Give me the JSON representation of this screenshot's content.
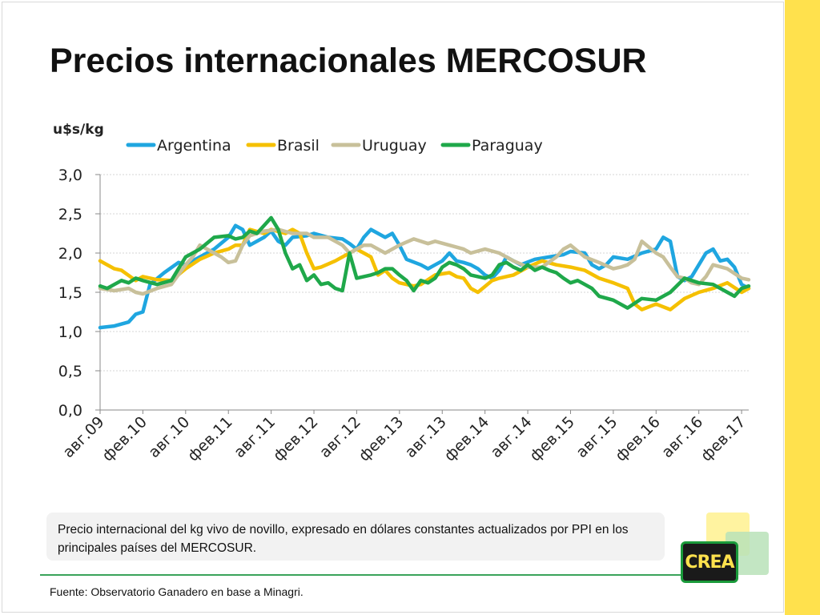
{
  "title": "Precios internacionales MERCOSUR",
  "caption": "Precio internacional del kg vivo de novillo, expresado en dólares constantes actualizados por PPI en los principales países del  MERCOSUR.",
  "source": "Fuente: Observatorio Ganadero en base a Minagri.",
  "logo_text": "CREA",
  "colors": {
    "side_stripe": "#ffe14d",
    "divider": "#3aa35a"
  },
  "chart_data": {
    "type": "line",
    "ylabel": "u$s/kg",
    "ylim": [
      0,
      3
    ],
    "yticks": [
      "0,0",
      "0,5",
      "1,0",
      "1,5",
      "2,0",
      "2,5",
      "3,0"
    ],
    "ytick_values": [
      0,
      0.5,
      1,
      1.5,
      2,
      2.5,
      3
    ],
    "x_labels": [
      "авг.09",
      "фев.10",
      "авг.10",
      "фев.11",
      "авг.11",
      "фев.12",
      "авг.12",
      "фев.13",
      "авг.13",
      "фев.14",
      "авг.14",
      "фев.15",
      "авг.15",
      "фев.16",
      "авг.16",
      "фев.17"
    ],
    "x_range": [
      0,
      91
    ],
    "grid": "horizontal",
    "legend": "top",
    "series": [
      {
        "name": "Argentina",
        "color": "#1fa6e0",
        "values": [
          [
            0,
            1.05
          ],
          [
            2,
            1.07
          ],
          [
            4,
            1.12
          ],
          [
            5,
            1.22
          ],
          [
            6,
            1.25
          ],
          [
            7,
            1.6
          ],
          [
            9,
            1.75
          ],
          [
            11,
            1.88
          ],
          [
            12,
            1.85
          ],
          [
            14,
            1.95
          ],
          [
            16,
            2.05
          ],
          [
            18,
            2.2
          ],
          [
            19,
            2.35
          ],
          [
            20,
            2.3
          ],
          [
            21,
            2.1
          ],
          [
            23,
            2.2
          ],
          [
            24,
            2.28
          ],
          [
            25,
            2.15
          ],
          [
            26,
            2.1
          ],
          [
            27,
            2.2
          ],
          [
            29,
            2.22
          ],
          [
            30,
            2.25
          ],
          [
            32,
            2.2
          ],
          [
            34,
            2.18
          ],
          [
            35,
            2.12
          ],
          [
            36,
            2.05
          ],
          [
            37,
            2.2
          ],
          [
            38,
            2.3
          ],
          [
            39,
            2.25
          ],
          [
            40,
            2.2
          ],
          [
            41,
            2.25
          ],
          [
            42,
            2.1
          ],
          [
            43,
            1.92
          ],
          [
            45,
            1.85
          ],
          [
            46,
            1.8
          ],
          [
            47,
            1.85
          ],
          [
            48,
            1.9
          ],
          [
            49,
            2.0
          ],
          [
            50,
            1.9
          ],
          [
            51,
            1.88
          ],
          [
            52,
            1.85
          ],
          [
            53,
            1.8
          ],
          [
            54,
            1.72
          ],
          [
            55,
            1.68
          ],
          [
            56,
            1.78
          ],
          [
            57,
            1.95
          ],
          [
            59,
            1.85
          ],
          [
            61,
            1.92
          ],
          [
            63,
            1.95
          ],
          [
            65,
            1.98
          ],
          [
            66,
            2.02
          ],
          [
            68,
            2.0
          ],
          [
            69,
            1.85
          ],
          [
            70,
            1.8
          ],
          [
            71,
            1.85
          ],
          [
            72,
            1.95
          ],
          [
            74,
            1.92
          ],
          [
            76,
            2.0
          ],
          [
            78,
            2.05
          ],
          [
            79,
            2.2
          ],
          [
            80,
            2.15
          ],
          [
            81,
            1.7
          ],
          [
            82,
            1.65
          ],
          [
            83,
            1.7
          ],
          [
            84,
            1.85
          ],
          [
            85,
            2.0
          ],
          [
            86,
            2.05
          ],
          [
            87,
            1.9
          ],
          [
            88,
            1.92
          ],
          [
            89,
            1.82
          ],
          [
            90,
            1.6
          ],
          [
            91,
            1.55
          ]
        ]
      },
      {
        "name": "Brasil",
        "color": "#f5c000",
        "values": [
          [
            0,
            1.9
          ],
          [
            2,
            1.8
          ],
          [
            3,
            1.78
          ],
          [
            5,
            1.65
          ],
          [
            6,
            1.7
          ],
          [
            8,
            1.66
          ],
          [
            10,
            1.65
          ],
          [
            12,
            1.8
          ],
          [
            14,
            1.92
          ],
          [
            16,
            2.0
          ],
          [
            18,
            2.05
          ],
          [
            19,
            2.1
          ],
          [
            20,
            2.1
          ],
          [
            21,
            2.3
          ],
          [
            23,
            2.25
          ],
          [
            24,
            2.3
          ],
          [
            26,
            2.25
          ],
          [
            27,
            2.3
          ],
          [
            28,
            2.25
          ],
          [
            29,
            2.0
          ],
          [
            30,
            1.8
          ],
          [
            31,
            1.82
          ],
          [
            33,
            1.9
          ],
          [
            35,
            2.0
          ],
          [
            36,
            2.05
          ],
          [
            37,
            2.0
          ],
          [
            38,
            1.95
          ],
          [
            39,
            1.72
          ],
          [
            40,
            1.78
          ],
          [
            41,
            1.68
          ],
          [
            42,
            1.62
          ],
          [
            44,
            1.58
          ],
          [
            45,
            1.6
          ],
          [
            47,
            1.72
          ],
          [
            49,
            1.75
          ],
          [
            50,
            1.7
          ],
          [
            51,
            1.68
          ],
          [
            52,
            1.55
          ],
          [
            53,
            1.5
          ],
          [
            55,
            1.65
          ],
          [
            56,
            1.68
          ],
          [
            58,
            1.72
          ],
          [
            60,
            1.82
          ],
          [
            62,
            1.9
          ],
          [
            64,
            1.85
          ],
          [
            66,
            1.82
          ],
          [
            68,
            1.78
          ],
          [
            70,
            1.68
          ],
          [
            72,
            1.62
          ],
          [
            74,
            1.55
          ],
          [
            75,
            1.35
          ],
          [
            76,
            1.28
          ],
          [
            78,
            1.35
          ],
          [
            80,
            1.28
          ],
          [
            82,
            1.42
          ],
          [
            84,
            1.5
          ],
          [
            86,
            1.55
          ],
          [
            88,
            1.62
          ],
          [
            90,
            1.5
          ],
          [
            91,
            1.55
          ]
        ]
      },
      {
        "name": "Uruguay",
        "color": "#c8c09a",
        "values": [
          [
            0,
            1.55
          ],
          [
            2,
            1.52
          ],
          [
            4,
            1.55
          ],
          [
            5,
            1.5
          ],
          [
            6,
            1.48
          ],
          [
            8,
            1.55
          ],
          [
            10,
            1.6
          ],
          [
            12,
            1.85
          ],
          [
            13,
            1.95
          ],
          [
            14,
            2.1
          ],
          [
            16,
            2.0
          ],
          [
            17,
            1.95
          ],
          [
            18,
            1.88
          ],
          [
            19,
            1.9
          ],
          [
            20,
            2.1
          ],
          [
            21,
            2.22
          ],
          [
            23,
            2.28
          ],
          [
            25,
            2.3
          ],
          [
            27,
            2.25
          ],
          [
            29,
            2.25
          ],
          [
            30,
            2.2
          ],
          [
            32,
            2.2
          ],
          [
            34,
            2.1
          ],
          [
            35,
            2.0
          ],
          [
            36,
            2.05
          ],
          [
            37,
            2.1
          ],
          [
            38,
            2.1
          ],
          [
            40,
            2.0
          ],
          [
            42,
            2.1
          ],
          [
            44,
            2.18
          ],
          [
            46,
            2.12
          ],
          [
            47,
            2.15
          ],
          [
            49,
            2.1
          ],
          [
            51,
            2.05
          ],
          [
            52,
            2.0
          ],
          [
            54,
            2.05
          ],
          [
            56,
            2.0
          ],
          [
            58,
            1.9
          ],
          [
            60,
            1.82
          ],
          [
            62,
            1.82
          ],
          [
            64,
            1.95
          ],
          [
            65,
            2.05
          ],
          [
            66,
            2.1
          ],
          [
            68,
            1.95
          ],
          [
            70,
            1.88
          ],
          [
            72,
            1.8
          ],
          [
            73,
            1.82
          ],
          [
            74,
            1.85
          ],
          [
            75,
            1.92
          ],
          [
            76,
            2.15
          ],
          [
            78,
            2.0
          ],
          [
            79,
            1.95
          ],
          [
            80,
            1.82
          ],
          [
            81,
            1.7
          ],
          [
            82,
            1.68
          ],
          [
            83,
            1.62
          ],
          [
            84,
            1.6
          ],
          [
            85,
            1.7
          ],
          [
            86,
            1.85
          ],
          [
            88,
            1.8
          ],
          [
            90,
            1.68
          ],
          [
            91,
            1.66
          ]
        ]
      },
      {
        "name": "Paraguay",
        "color": "#1fa84a",
        "values": [
          [
            0,
            1.58
          ],
          [
            1,
            1.55
          ],
          [
            2,
            1.6
          ],
          [
            3,
            1.65
          ],
          [
            4,
            1.62
          ],
          [
            5,
            1.68
          ],
          [
            6,
            1.65
          ],
          [
            8,
            1.6
          ],
          [
            10,
            1.65
          ],
          [
            11,
            1.8
          ],
          [
            12,
            1.95
          ],
          [
            14,
            2.05
          ],
          [
            16,
            2.2
          ],
          [
            18,
            2.22
          ],
          [
            19,
            2.18
          ],
          [
            20,
            2.2
          ],
          [
            21,
            2.28
          ],
          [
            22,
            2.25
          ],
          [
            24,
            2.45
          ],
          [
            25,
            2.3
          ],
          [
            26,
            2.0
          ],
          [
            27,
            1.8
          ],
          [
            28,
            1.85
          ],
          [
            29,
            1.65
          ],
          [
            30,
            1.72
          ],
          [
            31,
            1.6
          ],
          [
            32,
            1.62
          ],
          [
            33,
            1.55
          ],
          [
            34,
            1.52
          ],
          [
            35,
            2.0
          ],
          [
            36,
            1.68
          ],
          [
            37,
            1.7
          ],
          [
            38,
            1.72
          ],
          [
            39,
            1.75
          ],
          [
            40,
            1.8
          ],
          [
            41,
            1.8
          ],
          [
            42,
            1.72
          ],
          [
            43,
            1.65
          ],
          [
            44,
            1.52
          ],
          [
            45,
            1.65
          ],
          [
            46,
            1.62
          ],
          [
            47,
            1.68
          ],
          [
            48,
            1.82
          ],
          [
            49,
            1.88
          ],
          [
            50,
            1.85
          ],
          [
            51,
            1.8
          ],
          [
            52,
            1.72
          ],
          [
            53,
            1.7
          ],
          [
            54,
            1.68
          ],
          [
            55,
            1.72
          ],
          [
            56,
            1.85
          ],
          [
            57,
            1.88
          ],
          [
            58,
            1.82
          ],
          [
            59,
            1.78
          ],
          [
            60,
            1.85
          ],
          [
            61,
            1.78
          ],
          [
            62,
            1.82
          ],
          [
            63,
            1.78
          ],
          [
            64,
            1.75
          ],
          [
            65,
            1.68
          ],
          [
            66,
            1.62
          ],
          [
            67,
            1.65
          ],
          [
            68,
            1.6
          ],
          [
            69,
            1.55
          ],
          [
            70,
            1.45
          ],
          [
            72,
            1.4
          ],
          [
            74,
            1.3
          ],
          [
            76,
            1.42
          ],
          [
            78,
            1.4
          ],
          [
            80,
            1.5
          ],
          [
            82,
            1.68
          ],
          [
            84,
            1.62
          ],
          [
            86,
            1.6
          ],
          [
            88,
            1.5
          ],
          [
            89,
            1.45
          ],
          [
            90,
            1.55
          ],
          [
            91,
            1.58
          ]
        ]
      }
    ]
  }
}
